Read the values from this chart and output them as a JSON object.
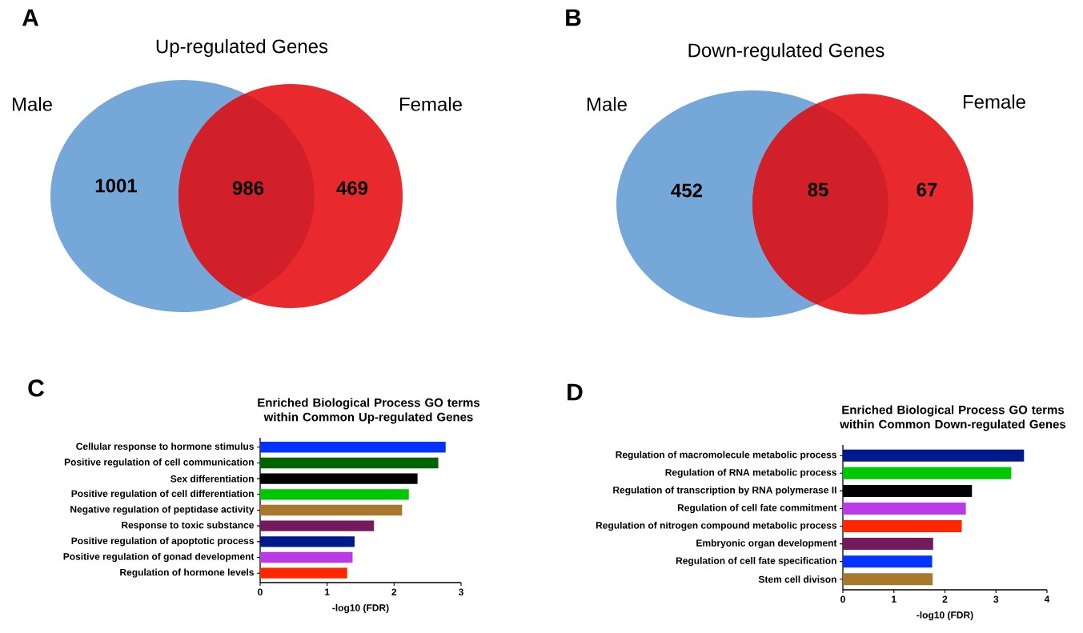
{
  "chart_data": [
    {
      "type": "other",
      "annotations": [
        "A"
      ],
      "title": "Up-regulated Genes",
      "categories": [
        "Male",
        null,
        "Female"
      ],
      "values": [
        1001,
        986,
        469
      ],
      "data_labels": true,
      "colors": [
        "#75a8d8",
        "#d2202a",
        "#e8292e"
      ]
    },
    {
      "type": "other",
      "annotations": [
        "B"
      ],
      "title": "Down-regulated Genes",
      "categories": [
        "Male",
        null,
        "Female"
      ],
      "values": [
        452,
        85,
        67
      ],
      "data_labels": true,
      "colors": [
        "#75a8d8",
        "#d2202a",
        "#e8292e"
      ]
    },
    {
      "type": "bar",
      "orientation": "horizontal",
      "annotations": [
        "C"
      ],
      "title": "Enriched Biological Process GO terms within Common Up-regulated Genes",
      "xlabel": "-log10 (FDR)",
      "categories": [
        "Cellular response to hormone stimulus",
        "Positive regulation of cell communication",
        "Sex differentiation",
        "Positive regulation of cell differentiation",
        "Negative regulation of peptidase activity",
        "Response to toxic substance",
        "Positive regulation of apoptotic process",
        "Positive regulation of gonad development",
        "Regulation of hormone levels"
      ],
      "values": [
        2.77,
        2.66,
        2.35,
        2.22,
        2.12,
        1.7,
        1.41,
        1.38,
        1.3
      ],
      "colors": [
        "#0433ff",
        "#006400",
        "#000000",
        "#00c800",
        "#a8782c",
        "#741b5e",
        "#001a8c",
        "#bb3ae8",
        "#ff2600"
      ],
      "xlim": [
        0,
        3
      ],
      "xticks": [
        0,
        1,
        2,
        3
      ]
    },
    {
      "type": "bar",
      "orientation": "horizontal",
      "annotations": [
        "D"
      ],
      "title": "Enriched Biological Process GO terms within Common Down-regulated Genes",
      "xlabel": "-log10 (FDR)",
      "categories": [
        "Regulation of macromolecule metabolic process",
        "Regulation of RNA metabolic process",
        "Regulation of transcription by RNA polymerase II",
        "Regulation of cell fate commitment",
        "Regulation of nitrogen compound metabolic process",
        "Embryonic organ development",
        "Regulation of cell fate specification",
        "Stem cell divison"
      ],
      "values": [
        3.55,
        3.3,
        2.53,
        2.41,
        2.33,
        1.77,
        1.75,
        1.76
      ],
      "colors": [
        "#001a8c",
        "#00c800",
        "#000000",
        "#bb3ae8",
        "#ff2600",
        "#741b5e",
        "#0433ff",
        "#a8782c"
      ],
      "xlim": [
        0,
        4
      ],
      "xticks": [
        0,
        1,
        2,
        3,
        4
      ]
    }
  ]
}
